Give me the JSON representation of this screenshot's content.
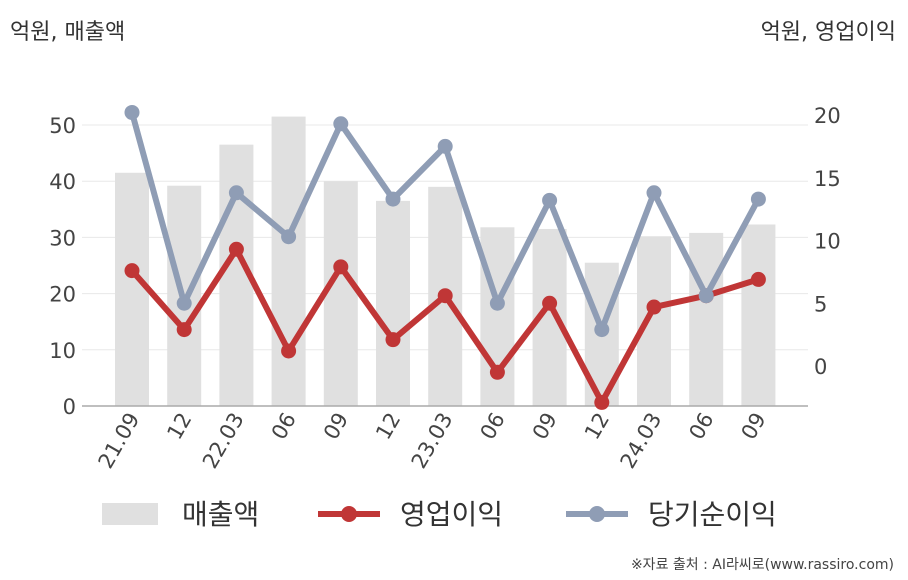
{
  "units": {
    "left": "억원, 매출액",
    "right": "억원, 영업이익"
  },
  "source": "※자료 출처 : AI라씨로(www.rassiro.com)",
  "chart_data": {
    "type": "bar+line",
    "categories": [
      "21.09",
      "12",
      "22.03",
      "06",
      "09",
      "12",
      "23.03",
      "06",
      "09",
      "12",
      "24.03",
      "06",
      "09"
    ],
    "series": [
      {
        "name": "매출액",
        "type": "bar",
        "axis": "left",
        "color": "#e0e0e0",
        "values": [
          41.5,
          39.2,
          46.5,
          51.5,
          40.0,
          36.5,
          39.0,
          31.8,
          31.5,
          25.5,
          30.2,
          30.8,
          32.3
        ]
      },
      {
        "name": "영업이익",
        "type": "line",
        "axis": "right",
        "color": "#c03636",
        "values": [
          7.6,
          2.9,
          9.3,
          1.2,
          7.9,
          2.1,
          5.6,
          -0.5,
          5.0,
          -2.9,
          4.7,
          5.6,
          6.9
        ]
      },
      {
        "name": "당기순이익",
        "type": "line",
        "axis": "right",
        "color": "#8f9db5",
        "values": [
          20.2,
          5.0,
          13.8,
          10.3,
          19.3,
          13.3,
          17.5,
          5.0,
          13.2,
          2.9,
          13.8,
          5.6,
          13.3
        ]
      }
    ],
    "y_left": {
      "ticks": [
        0,
        10,
        20,
        30,
        40,
        50
      ],
      "range": [
        0,
        50
      ]
    },
    "y_right": {
      "ticks": [
        0,
        5,
        10,
        15,
        20
      ],
      "range": [
        -3.3,
        20
      ]
    },
    "grid": true,
    "legend": "bottom"
  }
}
